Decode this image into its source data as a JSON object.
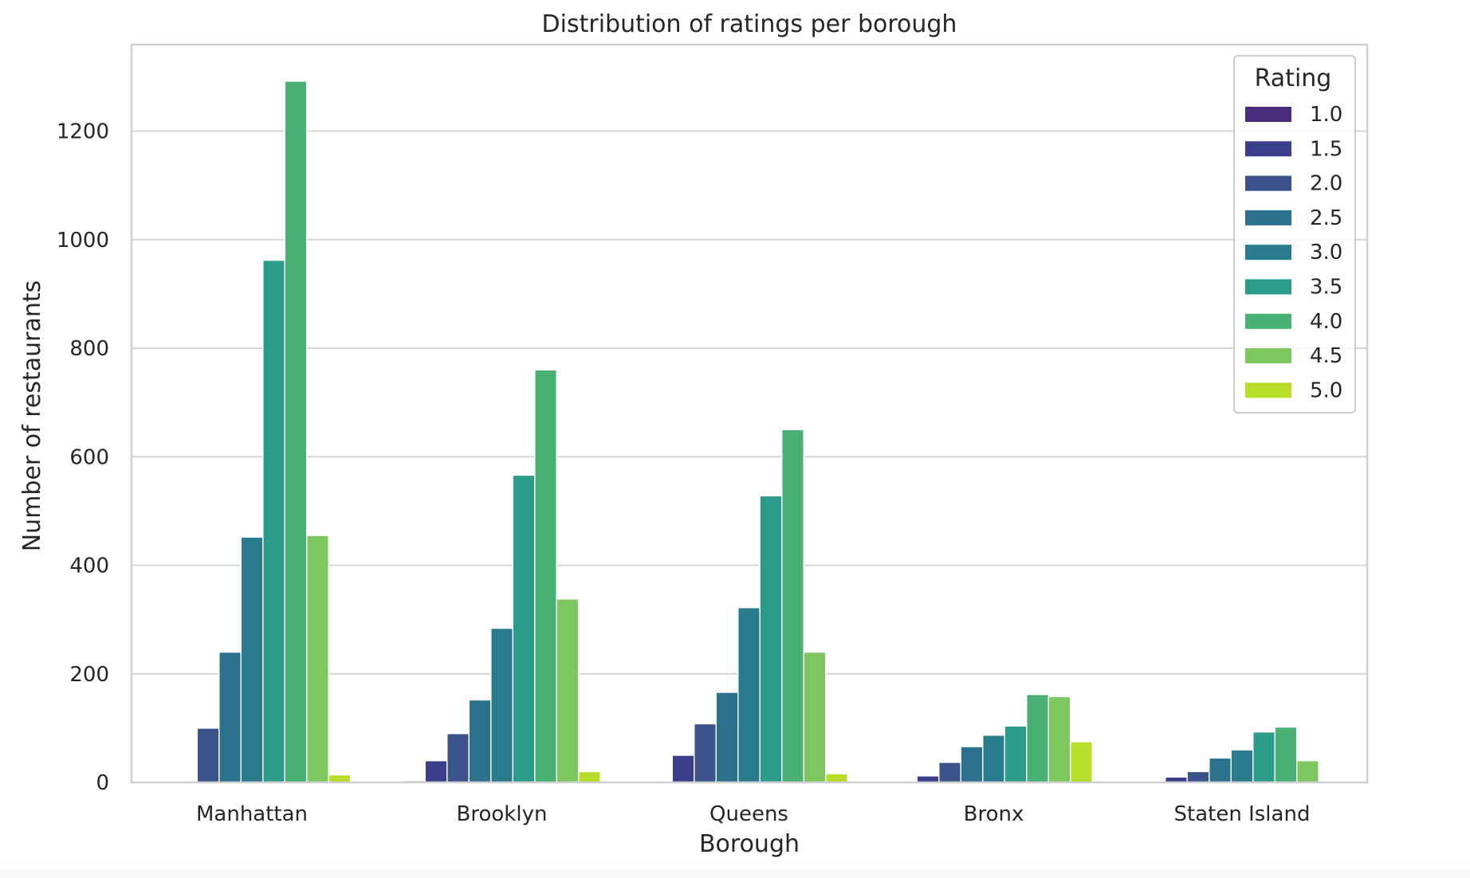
{
  "chart_data": {
    "type": "bar",
    "title": "Distribution of ratings per borough",
    "xlabel": "Borough",
    "ylabel": "Number of restaurants",
    "categories": [
      "Manhattan",
      "Brooklyn",
      "Queens",
      "Bronx",
      "Staten Island"
    ],
    "ylim": [
      0,
      1300
    ],
    "yticks": [
      0,
      200,
      400,
      600,
      800,
      1000,
      1200
    ],
    "grid": true,
    "legend": {
      "title": "Rating",
      "placement": "top-right"
    },
    "series": [
      {
        "name": "1.0",
        "color": "#472d7b",
        "values": [
          2,
          3,
          0,
          0,
          0
        ]
      },
      {
        "name": "1.5",
        "color": "#3b3e8b",
        "values": [
          0,
          40,
          50,
          12,
          10
        ]
      },
      {
        "name": "2.0",
        "color": "#3b528b",
        "values": [
          100,
          90,
          108,
          37,
          20
        ]
      },
      {
        "name": "2.5",
        "color": "#2c728e",
        "values": [
          240,
          152,
          166,
          66,
          45
        ]
      },
      {
        "name": "3.0",
        "color": "#287c8e",
        "values": [
          452,
          284,
          322,
          87,
          60
        ]
      },
      {
        "name": "3.5",
        "color": "#2a9c89",
        "values": [
          962,
          566,
          528,
          104,
          93
        ]
      },
      {
        "name": "4.0",
        "color": "#49b173",
        "values": [
          1292,
          760,
          650,
          162,
          102
        ]
      },
      {
        "name": "4.5",
        "color": "#7ec65e",
        "values": [
          455,
          338,
          240,
          158,
          40
        ]
      },
      {
        "name": "5.0",
        "color": "#b8de29",
        "values": [
          14,
          20,
          16,
          75,
          0
        ]
      }
    ]
  }
}
